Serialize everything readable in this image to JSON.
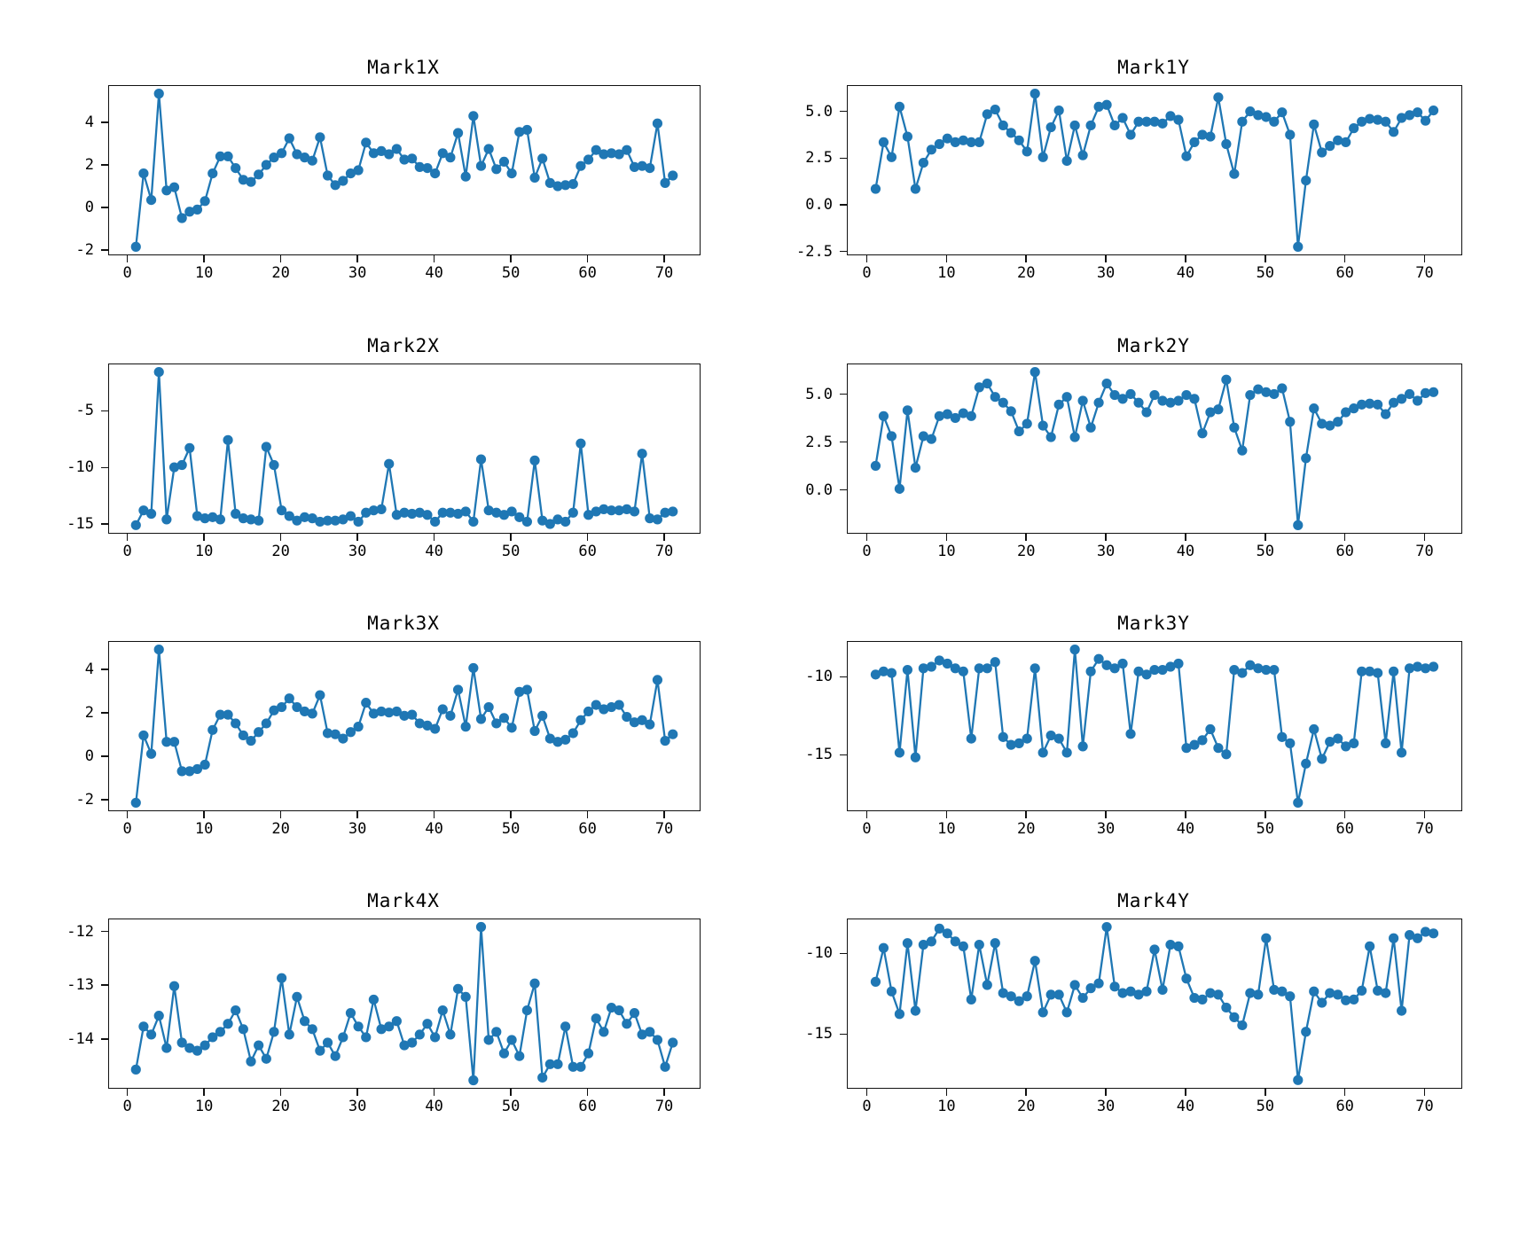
{
  "figure": {
    "background_color": "#ffffff",
    "line_color": "#1f77b4",
    "marker": "circle",
    "axis_color": "#111111",
    "grid": false,
    "legend": null
  },
  "chart_data": [
    {
      "type": "line",
      "title": "Mark1X",
      "xlabel": "",
      "ylabel": "",
      "x_start": 1,
      "x_step": 1,
      "xlim": [
        -2.5,
        74.5
      ],
      "ylim": [
        -2.16,
        5.76
      ],
      "xticks": [
        0,
        10,
        20,
        30,
        40,
        50,
        60,
        70
      ],
      "xtick_labels": [
        "0",
        "10",
        "20",
        "30",
        "40",
        "50",
        "60",
        "70"
      ],
      "yticks": [
        -2,
        0,
        2,
        4
      ],
      "ytick_labels": [
        "-2",
        "0",
        "2",
        "4"
      ],
      "values": [
        -1.8,
        1.65,
        0.4,
        5.4,
        0.85,
        1.0,
        -0.45,
        -0.15,
        -0.05,
        0.35,
        1.65,
        2.45,
        2.45,
        1.9,
        1.35,
        1.25,
        1.6,
        2.05,
        2.4,
        2.6,
        3.3,
        2.55,
        2.4,
        2.25,
        3.35,
        1.55,
        1.1,
        1.3,
        1.65,
        1.8,
        3.1,
        2.6,
        2.7,
        2.55,
        2.8,
        2.3,
        2.35,
        1.95,
        1.9,
        1.65,
        2.6,
        2.4,
        3.55,
        1.5,
        4.35,
        2.0,
        2.8,
        1.85,
        2.2,
        1.65,
        3.6,
        3.7,
        1.45,
        2.35,
        1.2,
        1.05,
        1.1,
        1.15,
        2.0,
        2.3,
        2.75,
        2.55,
        2.6,
        2.55,
        2.75,
        1.95,
        2.0,
        1.9,
        4.0,
        1.2,
        1.55
      ]
    },
    {
      "type": "line",
      "title": "Mark1Y",
      "xlabel": "",
      "ylabel": "",
      "x_start": 1,
      "x_step": 1,
      "xlim": [
        -2.5,
        74.5
      ],
      "ylim": [
        -2.61,
        6.41
      ],
      "xticks": [
        0,
        10,
        20,
        30,
        40,
        50,
        60,
        70
      ],
      "xtick_labels": [
        "0",
        "10",
        "20",
        "30",
        "40",
        "50",
        "60",
        "70"
      ],
      "yticks": [
        -2.5,
        0.0,
        2.5,
        5.0
      ],
      "ytick_labels": [
        "-2.5",
        "0.0",
        "2.5",
        "5.0"
      ],
      "values": [
        0.9,
        3.4,
        2.6,
        5.3,
        3.7,
        0.9,
        2.3,
        3.0,
        3.3,
        3.6,
        3.4,
        3.5,
        3.4,
        3.4,
        4.9,
        5.15,
        4.3,
        3.9,
        3.5,
        2.9,
        6.0,
        2.6,
        4.2,
        5.1,
        2.4,
        4.3,
        2.7,
        4.3,
        5.3,
        5.4,
        4.3,
        4.7,
        3.8,
        4.5,
        4.5,
        4.5,
        4.4,
        4.8,
        4.6,
        2.65,
        3.4,
        3.8,
        3.7,
        5.8,
        3.3,
        1.7,
        4.5,
        5.05,
        4.85,
        4.75,
        4.5,
        5.0,
        3.8,
        -2.2,
        1.35,
        4.35,
        2.85,
        3.2,
        3.5,
        3.4,
        4.15,
        4.5,
        4.65,
        4.6,
        4.5,
        3.95,
        4.7,
        4.85,
        5.0,
        4.55,
        5.1
      ]
    },
    {
      "type": "line",
      "title": "Mark2X",
      "xlabel": "",
      "ylabel": "",
      "x_start": 1,
      "x_step": 1,
      "xlim": [
        -2.5,
        74.5
      ],
      "ylim": [
        -15.68,
        -0.83
      ],
      "xticks": [
        0,
        10,
        20,
        30,
        40,
        50,
        60,
        70
      ],
      "xtick_labels": [
        "0",
        "10",
        "20",
        "30",
        "40",
        "50",
        "60",
        "70"
      ],
      "yticks": [
        -5,
        -10,
        -15
      ],
      "ytick_labels": [
        "-5",
        "-10",
        "-15"
      ],
      "values": [
        -15.0,
        -13.7,
        -14.0,
        -1.5,
        -14.5,
        -9.9,
        -9.7,
        -8.2,
        -14.2,
        -14.4,
        -14.3,
        -14.5,
        -7.5,
        -14.0,
        -14.4,
        -14.5,
        -14.6,
        -8.1,
        -9.7,
        -13.7,
        -14.2,
        -14.6,
        -14.3,
        -14.4,
        -14.7,
        -14.6,
        -14.6,
        -14.5,
        -14.2,
        -14.7,
        -13.9,
        -13.7,
        -13.6,
        -9.6,
        -14.1,
        -13.9,
        -14.0,
        -13.9,
        -14.1,
        -14.7,
        -13.9,
        -13.9,
        -14.0,
        -13.8,
        -14.7,
        -9.2,
        -13.7,
        -13.9,
        -14.1,
        -13.8,
        -14.3,
        -14.7,
        -9.3,
        -14.6,
        -14.9,
        -14.5,
        -14.7,
        -13.9,
        -7.8,
        -14.1,
        -13.8,
        -13.6,
        -13.7,
        -13.7,
        -13.6,
        -13.8,
        -8.7,
        -14.4,
        -14.5,
        -13.9,
        -13.8
      ]
    },
    {
      "type": "line",
      "title": "Mark2Y",
      "xlabel": "",
      "ylabel": "",
      "x_start": 1,
      "x_step": 1,
      "xlim": [
        -2.5,
        74.5
      ],
      "ylim": [
        -2.2,
        6.6
      ],
      "xticks": [
        0,
        10,
        20,
        30,
        40,
        50,
        60,
        70
      ],
      "xtick_labels": [
        "0",
        "10",
        "20",
        "30",
        "40",
        "50",
        "60",
        "70"
      ],
      "yticks": [
        0.0,
        2.5,
        5.0
      ],
      "ytick_labels": [
        "0.0",
        "2.5",
        "5.0"
      ],
      "values": [
        1.3,
        3.9,
        2.85,
        0.1,
        4.2,
        1.2,
        2.85,
        2.7,
        3.9,
        4.0,
        3.8,
        4.05,
        3.9,
        5.4,
        5.6,
        4.9,
        4.6,
        4.15,
        3.1,
        3.5,
        6.2,
        3.4,
        2.8,
        4.5,
        4.9,
        2.8,
        4.7,
        3.3,
        4.6,
        5.6,
        5.0,
        4.8,
        5.05,
        4.6,
        4.1,
        5.0,
        4.7,
        4.6,
        4.7,
        5.0,
        4.8,
        3.0,
        4.1,
        4.25,
        5.8,
        3.3,
        2.1,
        5.0,
        5.3,
        5.15,
        5.05,
        5.35,
        3.6,
        -1.8,
        1.7,
        4.3,
        3.5,
        3.4,
        3.6,
        4.1,
        4.3,
        4.5,
        4.55,
        4.5,
        4.0,
        4.6,
        4.8,
        5.05,
        4.7,
        5.1,
        5.15
      ]
    },
    {
      "type": "line",
      "title": "Mark3X",
      "xlabel": "",
      "ylabel": "",
      "x_start": 1,
      "x_step": 1,
      "xlim": [
        -2.5,
        74.5
      ],
      "ylim": [
        -2.45,
        5.3
      ],
      "xticks": [
        0,
        10,
        20,
        30,
        40,
        50,
        60,
        70
      ],
      "xtick_labels": [
        "0",
        "10",
        "20",
        "30",
        "40",
        "50",
        "60",
        "70"
      ],
      "yticks": [
        -2,
        0,
        2,
        4
      ],
      "ytick_labels": [
        "-2",
        "0",
        "2",
        "4"
      ],
      "values": [
        -2.1,
        1.0,
        0.15,
        4.95,
        0.7,
        0.7,
        -0.65,
        -0.65,
        -0.55,
        -0.35,
        1.25,
        1.95,
        1.95,
        1.55,
        1.0,
        0.75,
        1.15,
        1.55,
        2.15,
        2.3,
        2.7,
        2.3,
        2.1,
        2.0,
        2.85,
        1.1,
        1.05,
        0.85,
        1.15,
        1.4,
        2.5,
        2.0,
        2.1,
        2.05,
        2.1,
        1.9,
        1.95,
        1.55,
        1.45,
        1.3,
        2.2,
        1.9,
        3.1,
        1.4,
        4.1,
        1.75,
        2.3,
        1.55,
        1.8,
        1.35,
        3.0,
        3.1,
        1.2,
        1.9,
        0.85,
        0.7,
        0.8,
        1.1,
        1.7,
        2.1,
        2.4,
        2.2,
        2.3,
        2.4,
        1.85,
        1.6,
        1.7,
        1.5,
        3.55,
        0.75,
        1.05
      ]
    },
    {
      "type": "line",
      "title": "Mark3Y",
      "xlabel": "",
      "ylabel": "",
      "x_start": 1,
      "x_step": 1,
      "xlim": [
        -2.5,
        74.5
      ],
      "ylim": [
        -18.49,
        -7.71
      ],
      "xticks": [
        0,
        10,
        20,
        30,
        40,
        50,
        60,
        70
      ],
      "xtick_labels": [
        "0",
        "10",
        "20",
        "30",
        "40",
        "50",
        "60",
        "70"
      ],
      "yticks": [
        -10,
        -15
      ],
      "ytick_labels": [
        "-10",
        "-15"
      ],
      "values": [
        -9.8,
        -9.6,
        -9.7,
        -14.8,
        -9.5,
        -15.1,
        -9.4,
        -9.3,
        -8.9,
        -9.1,
        -9.4,
        -9.6,
        -13.9,
        -9.4,
        -9.4,
        -9.0,
        -13.8,
        -14.3,
        -14.2,
        -13.9,
        -9.4,
        -14.8,
        -13.7,
        -13.9,
        -14.8,
        -8.2,
        -14.4,
        -9.6,
        -8.8,
        -9.2,
        -9.4,
        -9.1,
        -13.6,
        -9.6,
        -9.8,
        -9.5,
        -9.5,
        -9.3,
        -9.1,
        -14.5,
        -14.3,
        -14.0,
        -13.3,
        -14.5,
        -14.9,
        -9.5,
        -9.7,
        -9.2,
        -9.4,
        -9.5,
        -9.5,
        -13.8,
        -14.2,
        -18.0,
        -15.5,
        -13.3,
        -15.2,
        -14.1,
        -13.9,
        -14.4,
        -14.2,
        -9.6,
        -9.6,
        -9.7,
        -14.2,
        -9.6,
        -14.8,
        -9.4,
        -9.3,
        -9.4,
        -9.3
      ]
    },
    {
      "type": "line",
      "title": "Mark4X",
      "xlabel": "",
      "ylabel": "",
      "x_start": 1,
      "x_step": 1,
      "xlim": [
        -2.5,
        74.5
      ],
      "ylim": [
        -14.89,
        -11.76
      ],
      "xticks": [
        0,
        10,
        20,
        30,
        40,
        50,
        60,
        70
      ],
      "xtick_labels": [
        "0",
        "10",
        "20",
        "30",
        "40",
        "50",
        "60",
        "70"
      ],
      "yticks": [
        -12,
        -13,
        -14
      ],
      "ytick_labels": [
        "-12",
        "-13",
        "-14"
      ],
      "values": [
        -14.55,
        -13.75,
        -13.9,
        -13.55,
        -14.15,
        -13.0,
        -14.05,
        -14.15,
        -14.2,
        -14.1,
        -13.95,
        -13.85,
        -13.7,
        -13.45,
        -13.8,
        -14.4,
        -14.1,
        -14.35,
        -13.85,
        -12.85,
        -13.9,
        -13.2,
        -13.65,
        -13.8,
        -14.2,
        -14.05,
        -14.3,
        -13.95,
        -13.5,
        -13.75,
        -13.95,
        -13.25,
        -13.8,
        -13.75,
        -13.65,
        -14.1,
        -14.05,
        -13.9,
        -13.7,
        -13.95,
        -13.45,
        -13.9,
        -13.05,
        -13.2,
        -14.75,
        -11.9,
        -14.0,
        -13.85,
        -14.25,
        -14.0,
        -14.3,
        -13.45,
        -12.95,
        -14.7,
        -14.45,
        -14.45,
        -13.75,
        -14.5,
        -14.5,
        -14.25,
        -13.6,
        -13.85,
        -13.4,
        -13.45,
        -13.7,
        -13.5,
        -13.9,
        -13.85,
        -14.0,
        -14.5,
        -14.05
      ]
    },
    {
      "type": "line",
      "title": "Mark4Y",
      "xlabel": "",
      "ylabel": "",
      "x_start": 1,
      "x_step": 1,
      "xlim": [
        -2.5,
        74.5
      ],
      "ylim": [
        -18.28,
        -7.83
      ],
      "xticks": [
        0,
        10,
        20,
        30,
        40,
        50,
        60,
        70
      ],
      "xtick_labels": [
        "0",
        "10",
        "20",
        "30",
        "40",
        "50",
        "60",
        "70"
      ],
      "yticks": [
        -10,
        -15
      ],
      "ytick_labels": [
        "-10",
        "-15"
      ],
      "values": [
        -11.7,
        -9.6,
        -12.3,
        -13.7,
        -9.3,
        -13.5,
        -9.4,
        -9.2,
        -8.4,
        -8.7,
        -9.2,
        -9.5,
        -12.8,
        -9.4,
        -11.9,
        -9.3,
        -12.4,
        -12.6,
        -12.9,
        -12.6,
        -10.4,
        -13.6,
        -12.5,
        -12.5,
        -13.6,
        -11.9,
        -12.7,
        -12.1,
        -11.8,
        -8.3,
        -12.0,
        -12.4,
        -12.3,
        -12.5,
        -12.3,
        -9.7,
        -12.2,
        -9.4,
        -9.5,
        -11.5,
        -12.7,
        -12.8,
        -12.4,
        -12.5,
        -13.3,
        -13.9,
        -14.4,
        -12.4,
        -12.5,
        -9.0,
        -12.2,
        -12.3,
        -12.6,
        -17.8,
        -14.8,
        -12.3,
        -13.0,
        -12.4,
        -12.5,
        -12.85,
        -12.8,
        -12.25,
        -9.5,
        -12.25,
        -12.4,
        -9.0,
        -13.5,
        -8.8,
        -9.0,
        -8.6,
        -8.7
      ]
    }
  ]
}
